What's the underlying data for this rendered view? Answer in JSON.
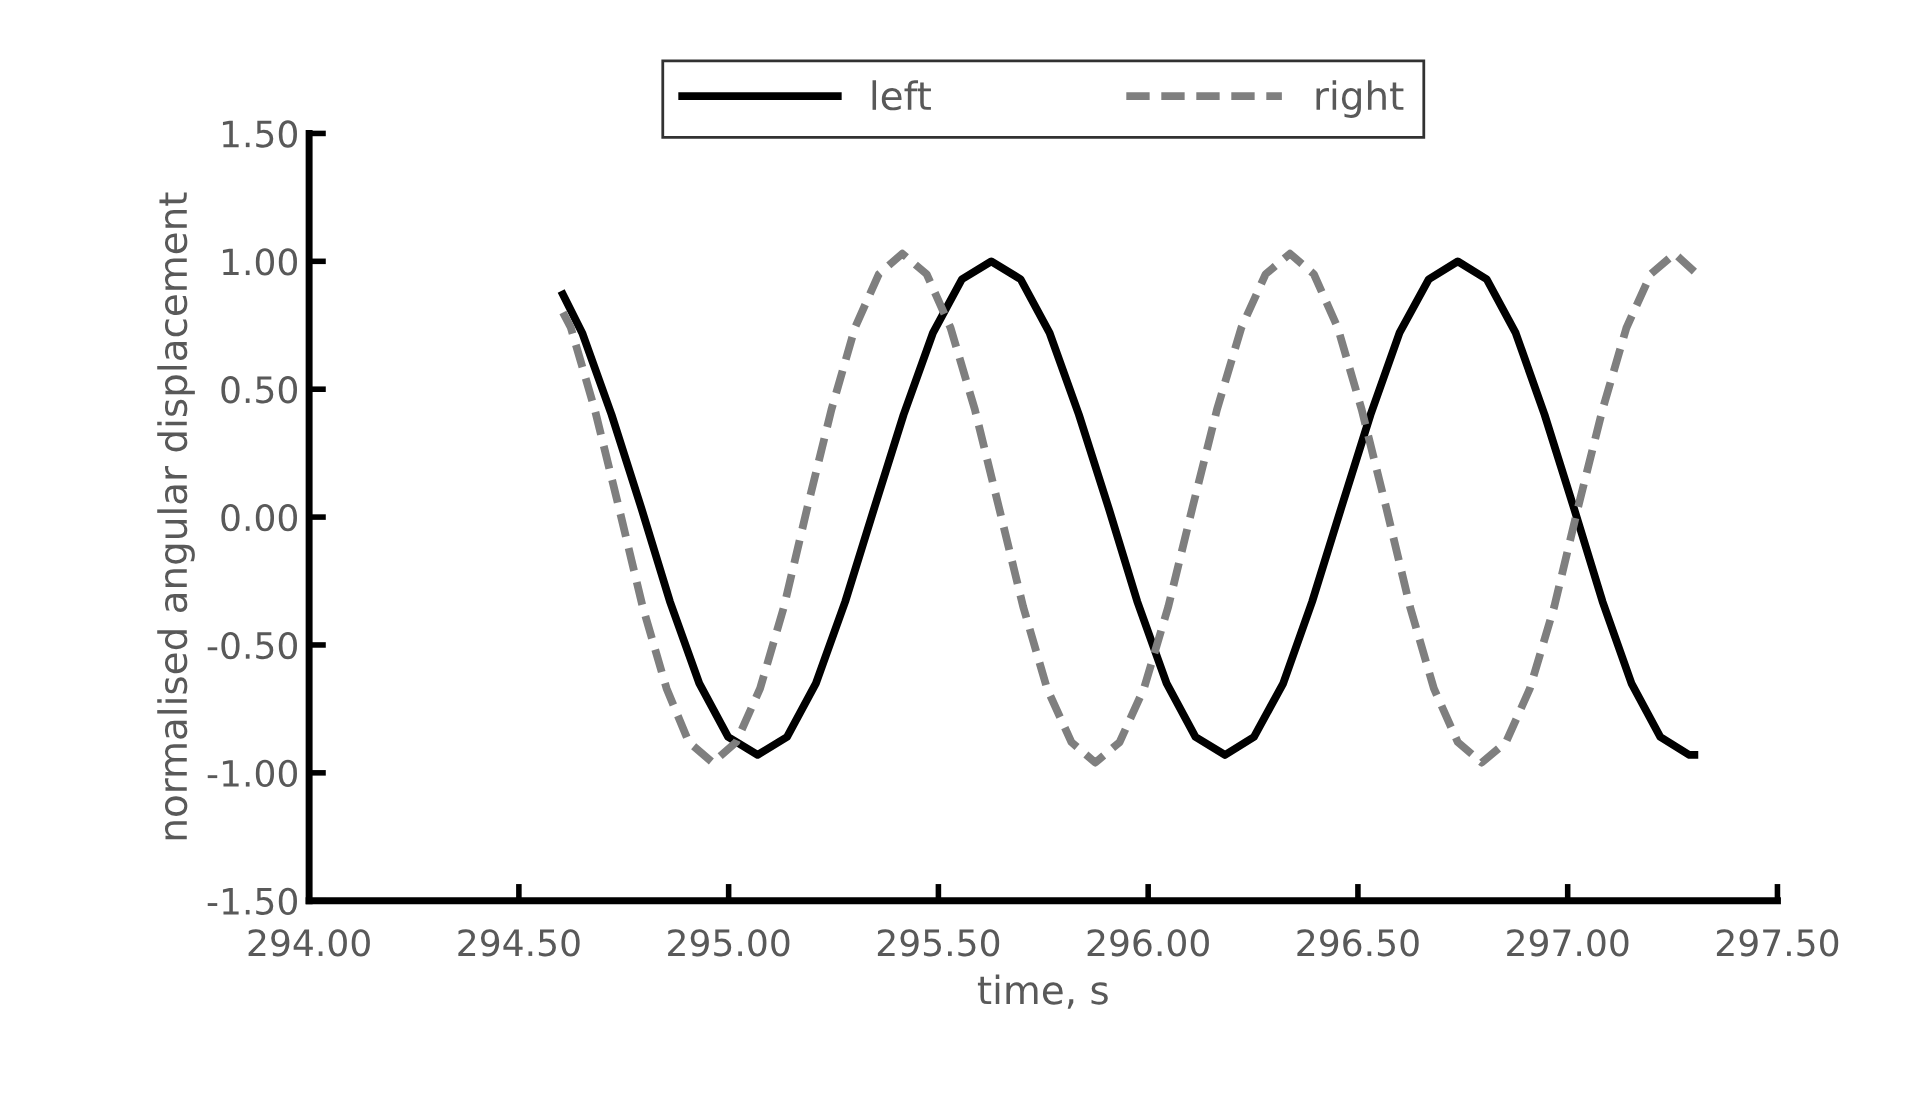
{
  "chart_data": {
    "type": "line",
    "xlabel": "time, s",
    "ylabel": "normalised angular displacement",
    "xlim": [
      294.0,
      297.5
    ],
    "ylim": [
      -1.5,
      1.5
    ],
    "xticks": [
      {
        "value": 294.0,
        "label": "294.00"
      },
      {
        "value": 294.5,
        "label": "294.50"
      },
      {
        "value": 295.0,
        "label": "295.00"
      },
      {
        "value": 295.5,
        "label": "295.50"
      },
      {
        "value": 296.0,
        "label": "296.00"
      },
      {
        "value": 296.5,
        "label": "296.50"
      },
      {
        "value": 297.0,
        "label": "297.00"
      },
      {
        "value": 297.5,
        "label": "297.50"
      }
    ],
    "yticks": [
      {
        "value": -1.5,
        "label": "-1.50"
      },
      {
        "value": -1.0,
        "label": "-1.00"
      },
      {
        "value": -0.5,
        "label": "-0.50"
      },
      {
        "value": 0.0,
        "label": "0.00"
      },
      {
        "value": 0.5,
        "label": "0.50"
      },
      {
        "value": 1.0,
        "label": "1.00"
      },
      {
        "value": 1.5,
        "label": "1.50"
      }
    ],
    "grid": false,
    "legend": "top",
    "marker": "none",
    "series": [
      {
        "name": "left",
        "color": "#000000",
        "line_style": "solid",
        "x": [
          294.605,
          294.651,
          294.721,
          294.791,
          294.86,
          294.93,
          294.999,
          295.069,
          295.139,
          295.208,
          295.278,
          295.348,
          295.417,
          295.487,
          295.556,
          295.626,
          295.696,
          295.765,
          295.835,
          295.905,
          295.974,
          296.044,
          296.113,
          296.183,
          296.252,
          296.322,
          296.391,
          296.461,
          296.53,
          296.599,
          296.669,
          296.738,
          296.807,
          296.876,
          296.945,
          297.014,
          297.083,
          297.152,
          297.221,
          297.29,
          297.302
        ],
        "values": [
          0.87,
          0.72,
          0.4,
          0.04,
          -0.33,
          -0.65,
          -0.86,
          -0.93,
          -0.86,
          -0.65,
          -0.33,
          0.04,
          0.4,
          0.72,
          0.93,
          1.0,
          0.93,
          0.72,
          0.4,
          0.04,
          -0.33,
          -0.65,
          -0.86,
          -0.93,
          -0.86,
          -0.65,
          -0.33,
          0.04,
          0.4,
          0.72,
          0.93,
          1.0,
          0.93,
          0.72,
          0.4,
          0.04,
          -0.33,
          -0.65,
          -0.86,
          -0.93,
          -0.93
        ]
      },
      {
        "name": "right",
        "color": "#7f7f7f",
        "line_style": "dashed",
        "x": [
          294.605,
          294.624,
          294.681,
          294.738,
          294.795,
          294.852,
          294.905,
          294.962,
          295.018,
          295.075,
          295.132,
          295.188,
          295.245,
          295.301,
          295.358,
          295.414,
          295.472,
          295.529,
          295.587,
          295.644,
          295.702,
          295.759,
          295.817,
          295.874,
          295.932,
          295.99,
          296.048,
          296.106,
          296.164,
          296.222,
          296.28,
          296.338,
          296.395,
          296.452,
          296.509,
          296.567,
          296.624,
          296.681,
          296.738,
          296.795,
          296.853,
          296.91,
          296.968,
          297.025,
          297.083,
          297.14,
          297.198,
          297.255,
          297.302
        ],
        "values": [
          0.8,
          0.74,
          0.42,
          0.04,
          -0.35,
          -0.67,
          -0.88,
          -0.96,
          -0.88,
          -0.67,
          -0.35,
          0.04,
          0.42,
          0.74,
          0.95,
          1.03,
          0.95,
          0.74,
          0.42,
          0.04,
          -0.35,
          -0.67,
          -0.88,
          -0.96,
          -0.88,
          -0.67,
          -0.35,
          0.04,
          0.42,
          0.74,
          0.95,
          1.03,
          0.95,
          0.74,
          0.42,
          0.04,
          -0.35,
          -0.67,
          -0.88,
          -0.96,
          -0.88,
          -0.67,
          -0.35,
          0.04,
          0.42,
          0.74,
          0.95,
          1.03,
          0.96
        ]
      }
    ]
  }
}
